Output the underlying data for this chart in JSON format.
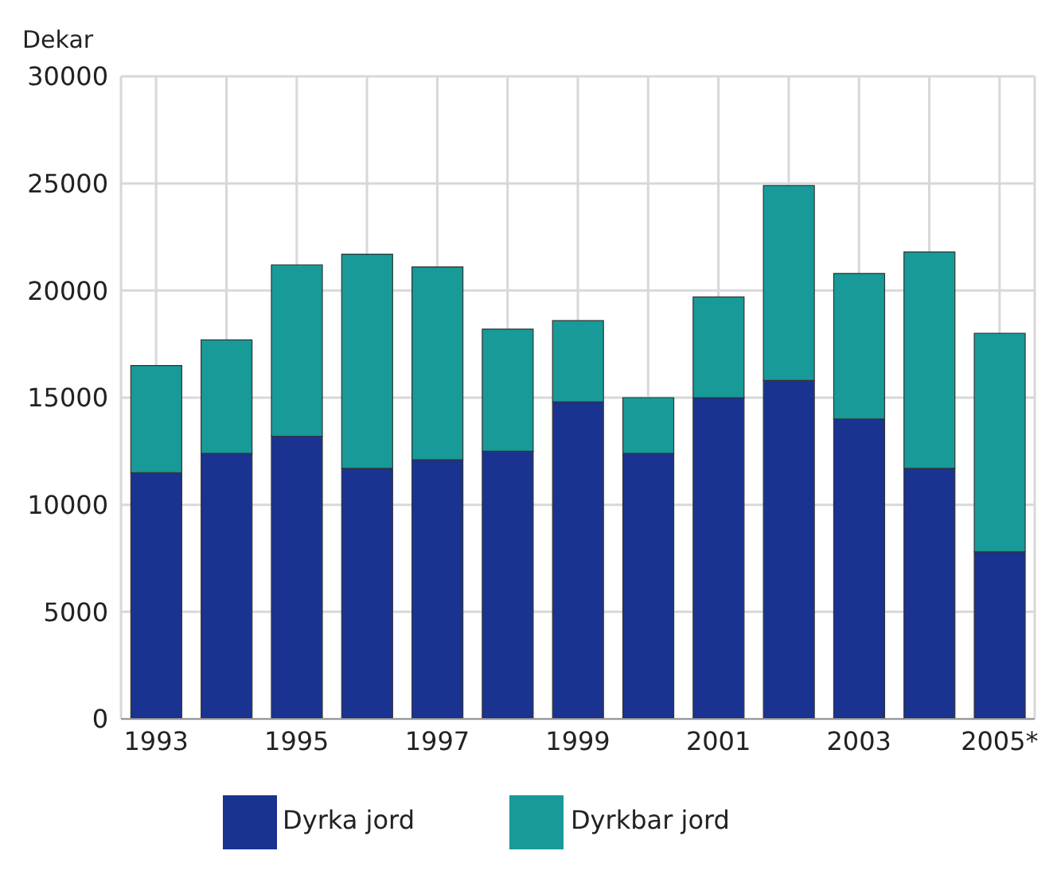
{
  "chart_data": {
    "type": "bar",
    "stacked": true,
    "ylabel": "Dekar",
    "categories": [
      "1993",
      null,
      "1995",
      null,
      "1997",
      null,
      "1999",
      null,
      "2001",
      null,
      "2003",
      null,
      "2005*"
    ],
    "series": [
      {
        "name": "Dyrka jord",
        "color": "#1a3390",
        "values": [
          11500,
          12400,
          13200,
          11700,
          12100,
          12500,
          14800,
          12400,
          15000,
          15800,
          14000,
          11700,
          7800
        ]
      },
      {
        "name": "Dyrkbar jord",
        "color": "#189a98",
        "values": [
          5000,
          5300,
          8000,
          10000,
          9000,
          5700,
          3800,
          2600,
          4700,
          9100,
          6800,
          10100,
          10200
        ]
      }
    ],
    "ylim": [
      0,
      30000
    ],
    "yticks": [
      0,
      5000,
      10000,
      15000,
      20000,
      25000,
      30000
    ],
    "grid": true,
    "legend": "bottom"
  }
}
